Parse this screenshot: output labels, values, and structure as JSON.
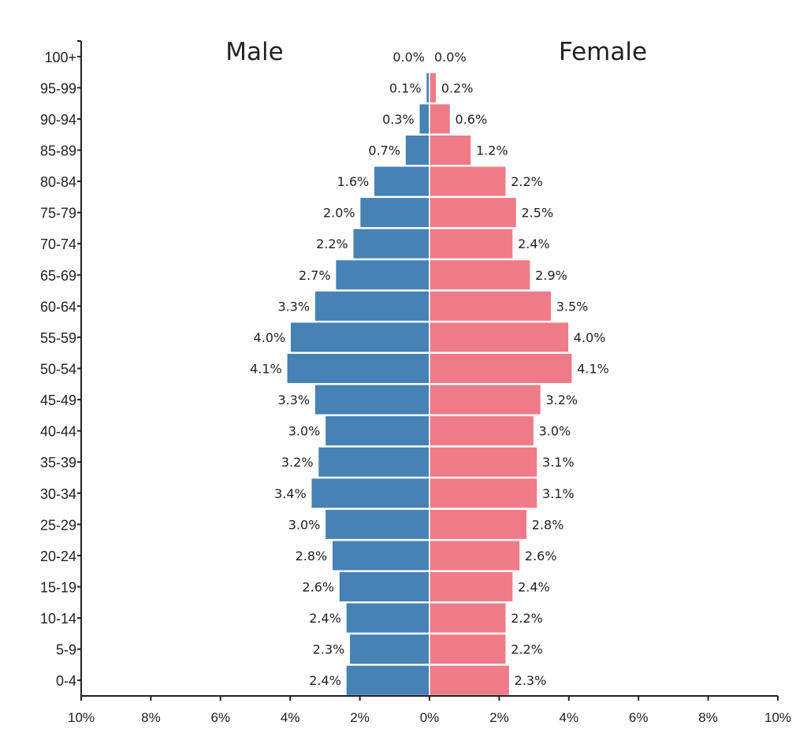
{
  "chart_data": {
    "type": "bar",
    "orientation": "horizontal",
    "layout": "population-pyramid",
    "categories": [
      "100+",
      "95-99",
      "90-94",
      "85-89",
      "80-84",
      "75-79",
      "70-74",
      "65-69",
      "60-64",
      "55-59",
      "50-54",
      "45-49",
      "40-44",
      "35-39",
      "30-34",
      "25-29",
      "20-24",
      "15-19",
      "10-14",
      "5-9",
      "0-4"
    ],
    "series": [
      {
        "name": "Male",
        "color": "#4682b4",
        "values": [
          0.0,
          0.1,
          0.3,
          0.7,
          1.6,
          2.0,
          2.2,
          2.7,
          3.3,
          4.0,
          4.1,
          3.3,
          3.0,
          3.2,
          3.4,
          3.0,
          2.8,
          2.6,
          2.4,
          2.3,
          2.4
        ],
        "labels": [
          "0.0%",
          "0.1%",
          "0.3%",
          "0.7%",
          "1.6%",
          "2.0%",
          "2.2%",
          "2.7%",
          "3.3%",
          "4.0%",
          "4.1%",
          "3.3%",
          "3.0%",
          "3.2%",
          "3.4%",
          "3.0%",
          "2.8%",
          "2.6%",
          "2.4%",
          "2.3%",
          "2.4%"
        ]
      },
      {
        "name": "Female",
        "color": "#f07b88",
        "values": [
          0.0,
          0.2,
          0.6,
          1.2,
          2.2,
          2.5,
          2.4,
          2.9,
          3.5,
          4.0,
          4.1,
          3.2,
          3.0,
          3.1,
          3.1,
          2.8,
          2.6,
          2.4,
          2.2,
          2.2,
          2.3
        ],
        "labels": [
          "0.0%",
          "0.2%",
          "0.6%",
          "1.2%",
          "2.2%",
          "2.5%",
          "2.4%",
          "2.9%",
          "3.5%",
          "4.0%",
          "4.1%",
          "3.2%",
          "3.0%",
          "3.1%",
          "3.1%",
          "2.8%",
          "2.6%",
          "2.4%",
          "2.2%",
          "2.2%",
          "2.3%"
        ]
      }
    ],
    "xlim": [
      -10,
      10
    ],
    "x_ticks": [
      -10,
      -8,
      -6,
      -4,
      -2,
      0,
      2,
      4,
      6,
      8,
      10
    ],
    "x_tick_labels": [
      "10%",
      "8%",
      "6%",
      "4%",
      "2%",
      "0%",
      "2%",
      "4%",
      "6%",
      "8%",
      "10%"
    ],
    "grid": false,
    "legend": "none"
  }
}
